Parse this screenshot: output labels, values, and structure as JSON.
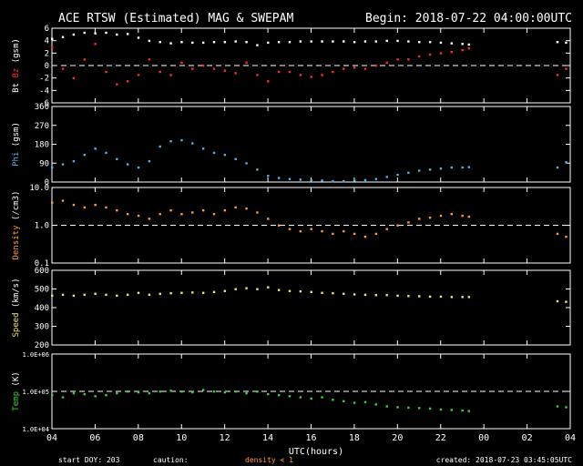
{
  "header": {
    "title": "ACE RTSW (Estimated) MAG & SWEPAM",
    "begin": "Begin: 2018-07-22 04:00:00UTC"
  },
  "footer": {
    "start_doy": "start DOY: 203",
    "caution_label": "caution:",
    "caution_note": "density < 1",
    "created": "created: 2018-07-23 03:45:05UTC"
  },
  "colors": {
    "bt": "#ffffff",
    "bz": "#ff2a2a",
    "phi": "#4fb3e6",
    "density": "#ff9b3a",
    "speed": "#f2e56a",
    "temp": "#3ad43a",
    "caution": "#ff9b3a",
    "axes": "#ffffff",
    "background": "#000000"
  },
  "chart_data": [
    {
      "type": "scatter",
      "ylabel_parts": [
        "Bt",
        "Bz",
        "(gsm)"
      ],
      "yticks": [
        "6",
        "4",
        "2",
        "0",
        "-2",
        "-4",
        "-6"
      ],
      "ylim": [
        -6,
        6
      ],
      "reference_line": 0,
      "series": [
        {
          "name": "Bt",
          "x": [
            4.0,
            4.5,
            5.0,
            5.5,
            6.0,
            6.5,
            7.0,
            7.5,
            8.0,
            8.5,
            9.0,
            9.5,
            10.0,
            10.5,
            11.0,
            11.5,
            12.0,
            12.5,
            13.0,
            13.5,
            14.0,
            14.5,
            15.0,
            15.5,
            16.0,
            16.5,
            17.0,
            17.5,
            18.0,
            18.5,
            19.0,
            19.5,
            20.0,
            20.5,
            21.0,
            21.5,
            22.0,
            22.5,
            23.0,
            23.3,
            27.4,
            27.8
          ],
          "values": [
            4.3,
            4.6,
            5.0,
            5.3,
            5.2,
            5.3,
            5.0,
            5.1,
            4.5,
            4.0,
            3.8,
            3.6,
            3.8,
            3.7,
            3.7,
            3.8,
            3.8,
            3.9,
            3.8,
            3.3,
            3.7,
            3.8,
            3.8,
            3.9,
            3.9,
            3.9,
            3.9,
            3.9,
            3.8,
            3.9,
            3.9,
            4.0,
            4.0,
            3.9,
            3.8,
            3.8,
            3.7,
            3.6,
            3.5,
            3.4,
            3.8,
            3.7
          ]
        },
        {
          "name": "Bz",
          "x": [
            4.0,
            4.5,
            5.0,
            5.5,
            6.0,
            6.5,
            7.0,
            7.5,
            8.0,
            8.5,
            9.0,
            9.5,
            10.0,
            10.5,
            11.0,
            11.5,
            12.0,
            12.5,
            13.0,
            13.5,
            14.0,
            14.5,
            15.0,
            15.5,
            16.0,
            16.5,
            17.0,
            17.5,
            18.0,
            18.5,
            19.0,
            19.5,
            20.0,
            20.5,
            21.0,
            21.5,
            22.0,
            22.5,
            23.0,
            23.3,
            27.4,
            27.8
          ],
          "values": [
            3.0,
            -0.5,
            -2.0,
            1.0,
            3.5,
            -1.0,
            -3.0,
            -2.5,
            -1.5,
            1.0,
            -1.0,
            -1.5,
            0.5,
            -0.5,
            0.0,
            -0.5,
            -0.8,
            -1.2,
            0.5,
            -1.5,
            -2.5,
            -1.0,
            -1.0,
            -1.5,
            -1.8,
            -1.5,
            -1.0,
            -0.5,
            -0.3,
            -0.5,
            0.0,
            0.5,
            1.0,
            1.0,
            1.5,
            1.8,
            2.0,
            2.2,
            2.5,
            2.8,
            -1.5,
            -0.5
          ]
        }
      ]
    },
    {
      "type": "scatter",
      "ylabel_parts": [
        "Phi",
        "(gsm)"
      ],
      "yticks": [
        "360",
        "270",
        "180",
        "90",
        "0"
      ],
      "ylim": [
        0,
        360
      ],
      "series": [
        {
          "name": "Phi",
          "x": [
            4.0,
            4.5,
            5.0,
            5.5,
            6.0,
            6.5,
            7.0,
            7.5,
            8.0,
            8.5,
            9.0,
            9.5,
            10.0,
            10.5,
            11.0,
            11.5,
            12.0,
            12.5,
            13.0,
            13.5,
            14.0,
            14.5,
            15.0,
            15.5,
            16.0,
            16.5,
            17.0,
            17.5,
            18.0,
            18.5,
            19.0,
            19.5,
            20.0,
            20.5,
            21.0,
            21.5,
            22.0,
            22.5,
            23.0,
            23.3,
            27.4,
            27.8
          ],
          "values": [
            70,
            85,
            100,
            130,
            160,
            140,
            110,
            85,
            70,
            100,
            170,
            195,
            200,
            185,
            160,
            140,
            130,
            110,
            90,
            60,
            30,
            20,
            15,
            12,
            10,
            8,
            5,
            5,
            8,
            10,
            15,
            25,
            35,
            45,
            55,
            60,
            65,
            70,
            70,
            72,
            70,
            95
          ]
        }
      ]
    },
    {
      "type": "scatter",
      "ylabel_parts": [
        "Density",
        "(/cm3)"
      ],
      "yticks": [
        "10.0",
        "1.0",
        "0.1"
      ],
      "yscale": "log",
      "ylim": [
        0.1,
        10
      ],
      "reference_line": 1,
      "series": [
        {
          "name": "Density",
          "x": [
            4.0,
            4.5,
            5.0,
            5.5,
            6.0,
            6.5,
            7.0,
            7.5,
            8.0,
            8.5,
            9.0,
            9.5,
            10.0,
            10.5,
            11.0,
            11.5,
            12.0,
            12.5,
            13.0,
            13.5,
            14.0,
            14.5,
            15.0,
            15.5,
            16.0,
            16.5,
            17.0,
            17.5,
            18.0,
            18.5,
            19.0,
            19.5,
            20.0,
            20.5,
            21.0,
            21.5,
            22.0,
            22.5,
            23.0,
            23.3,
            27.4,
            27.8
          ],
          "values": [
            4.0,
            4.5,
            3.5,
            3.0,
            3.5,
            3.0,
            2.5,
            2.0,
            1.8,
            1.5,
            2.0,
            2.5,
            2.0,
            2.2,
            2.5,
            2.0,
            2.5,
            3.0,
            2.8,
            2.2,
            1.5,
            1.0,
            0.8,
            0.7,
            0.8,
            0.7,
            0.6,
            0.7,
            0.6,
            0.5,
            0.6,
            0.8,
            1.0,
            1.2,
            1.5,
            1.6,
            1.8,
            2.0,
            1.8,
            1.7,
            0.6,
            0.5
          ]
        }
      ]
    },
    {
      "type": "scatter",
      "ylabel_parts": [
        "Speed",
        "(km/s)"
      ],
      "yticks": [
        "600",
        "500",
        "400",
        "300",
        "200"
      ],
      "ylim": [
        200,
        600
      ],
      "series": [
        {
          "name": "Speed",
          "x": [
            4.0,
            4.5,
            5.0,
            5.5,
            6.0,
            6.5,
            7.0,
            7.5,
            8.0,
            8.5,
            9.0,
            9.5,
            10.0,
            10.5,
            11.0,
            11.5,
            12.0,
            12.5,
            13.0,
            13.5,
            14.0,
            14.5,
            15.0,
            15.5,
            16.0,
            16.5,
            17.0,
            17.5,
            18.0,
            18.5,
            19.0,
            19.5,
            20.0,
            20.5,
            21.0,
            21.5,
            22.0,
            22.5,
            23.0,
            23.3,
            27.4,
            27.8
          ],
          "values": [
            465,
            470,
            465,
            470,
            475,
            470,
            465,
            470,
            480,
            470,
            475,
            478,
            480,
            482,
            480,
            485,
            490,
            500,
            505,
            500,
            510,
            495,
            490,
            488,
            485,
            480,
            478,
            475,
            472,
            470,
            468,
            468,
            465,
            463,
            462,
            460,
            460,
            458,
            458,
            458,
            435,
            432
          ]
        }
      ]
    },
    {
      "type": "scatter",
      "ylabel_parts": [
        "Temp",
        "(K)"
      ],
      "yticks": [
        "1.0E+06",
        "1.0E+05",
        "1.0E+04"
      ],
      "yscale": "log",
      "ylim": [
        10000,
        1000000
      ],
      "reference_line": 100000,
      "series": [
        {
          "name": "Temp",
          "x": [
            4.0,
            4.5,
            5.0,
            5.5,
            6.0,
            6.5,
            7.0,
            7.5,
            8.0,
            8.5,
            9.0,
            9.5,
            10.0,
            10.5,
            11.0,
            11.5,
            12.0,
            12.5,
            13.0,
            13.5,
            14.0,
            14.5,
            15.0,
            15.5,
            16.0,
            16.5,
            17.0,
            17.5,
            18.0,
            18.5,
            19.0,
            19.5,
            20.0,
            20.5,
            21.0,
            21.5,
            22.0,
            22.5,
            23.0,
            23.3,
            27.4,
            27.8
          ],
          "values": [
            80000,
            70000,
            90000,
            85000,
            75000,
            80000,
            90000,
            100000,
            95000,
            90000,
            100000,
            105000,
            100000,
            95000,
            110000,
            100000,
            95000,
            100000,
            90000,
            100000,
            85000,
            80000,
            75000,
            70000,
            65000,
            70000,
            60000,
            55000,
            50000,
            52000,
            45000,
            40000,
            38000,
            37000,
            36000,
            35000,
            33000,
            32000,
            31000,
            30000,
            40000,
            38000
          ]
        }
      ]
    }
  ],
  "x_axis": {
    "tick_labels": [
      "04",
      "06",
      "08",
      "10",
      "12",
      "14",
      "16",
      "18",
      "20",
      "22",
      "00",
      "02",
      "04"
    ],
    "xlim": [
      4,
      28
    ],
    "xlabel": "UTC(hours)"
  }
}
